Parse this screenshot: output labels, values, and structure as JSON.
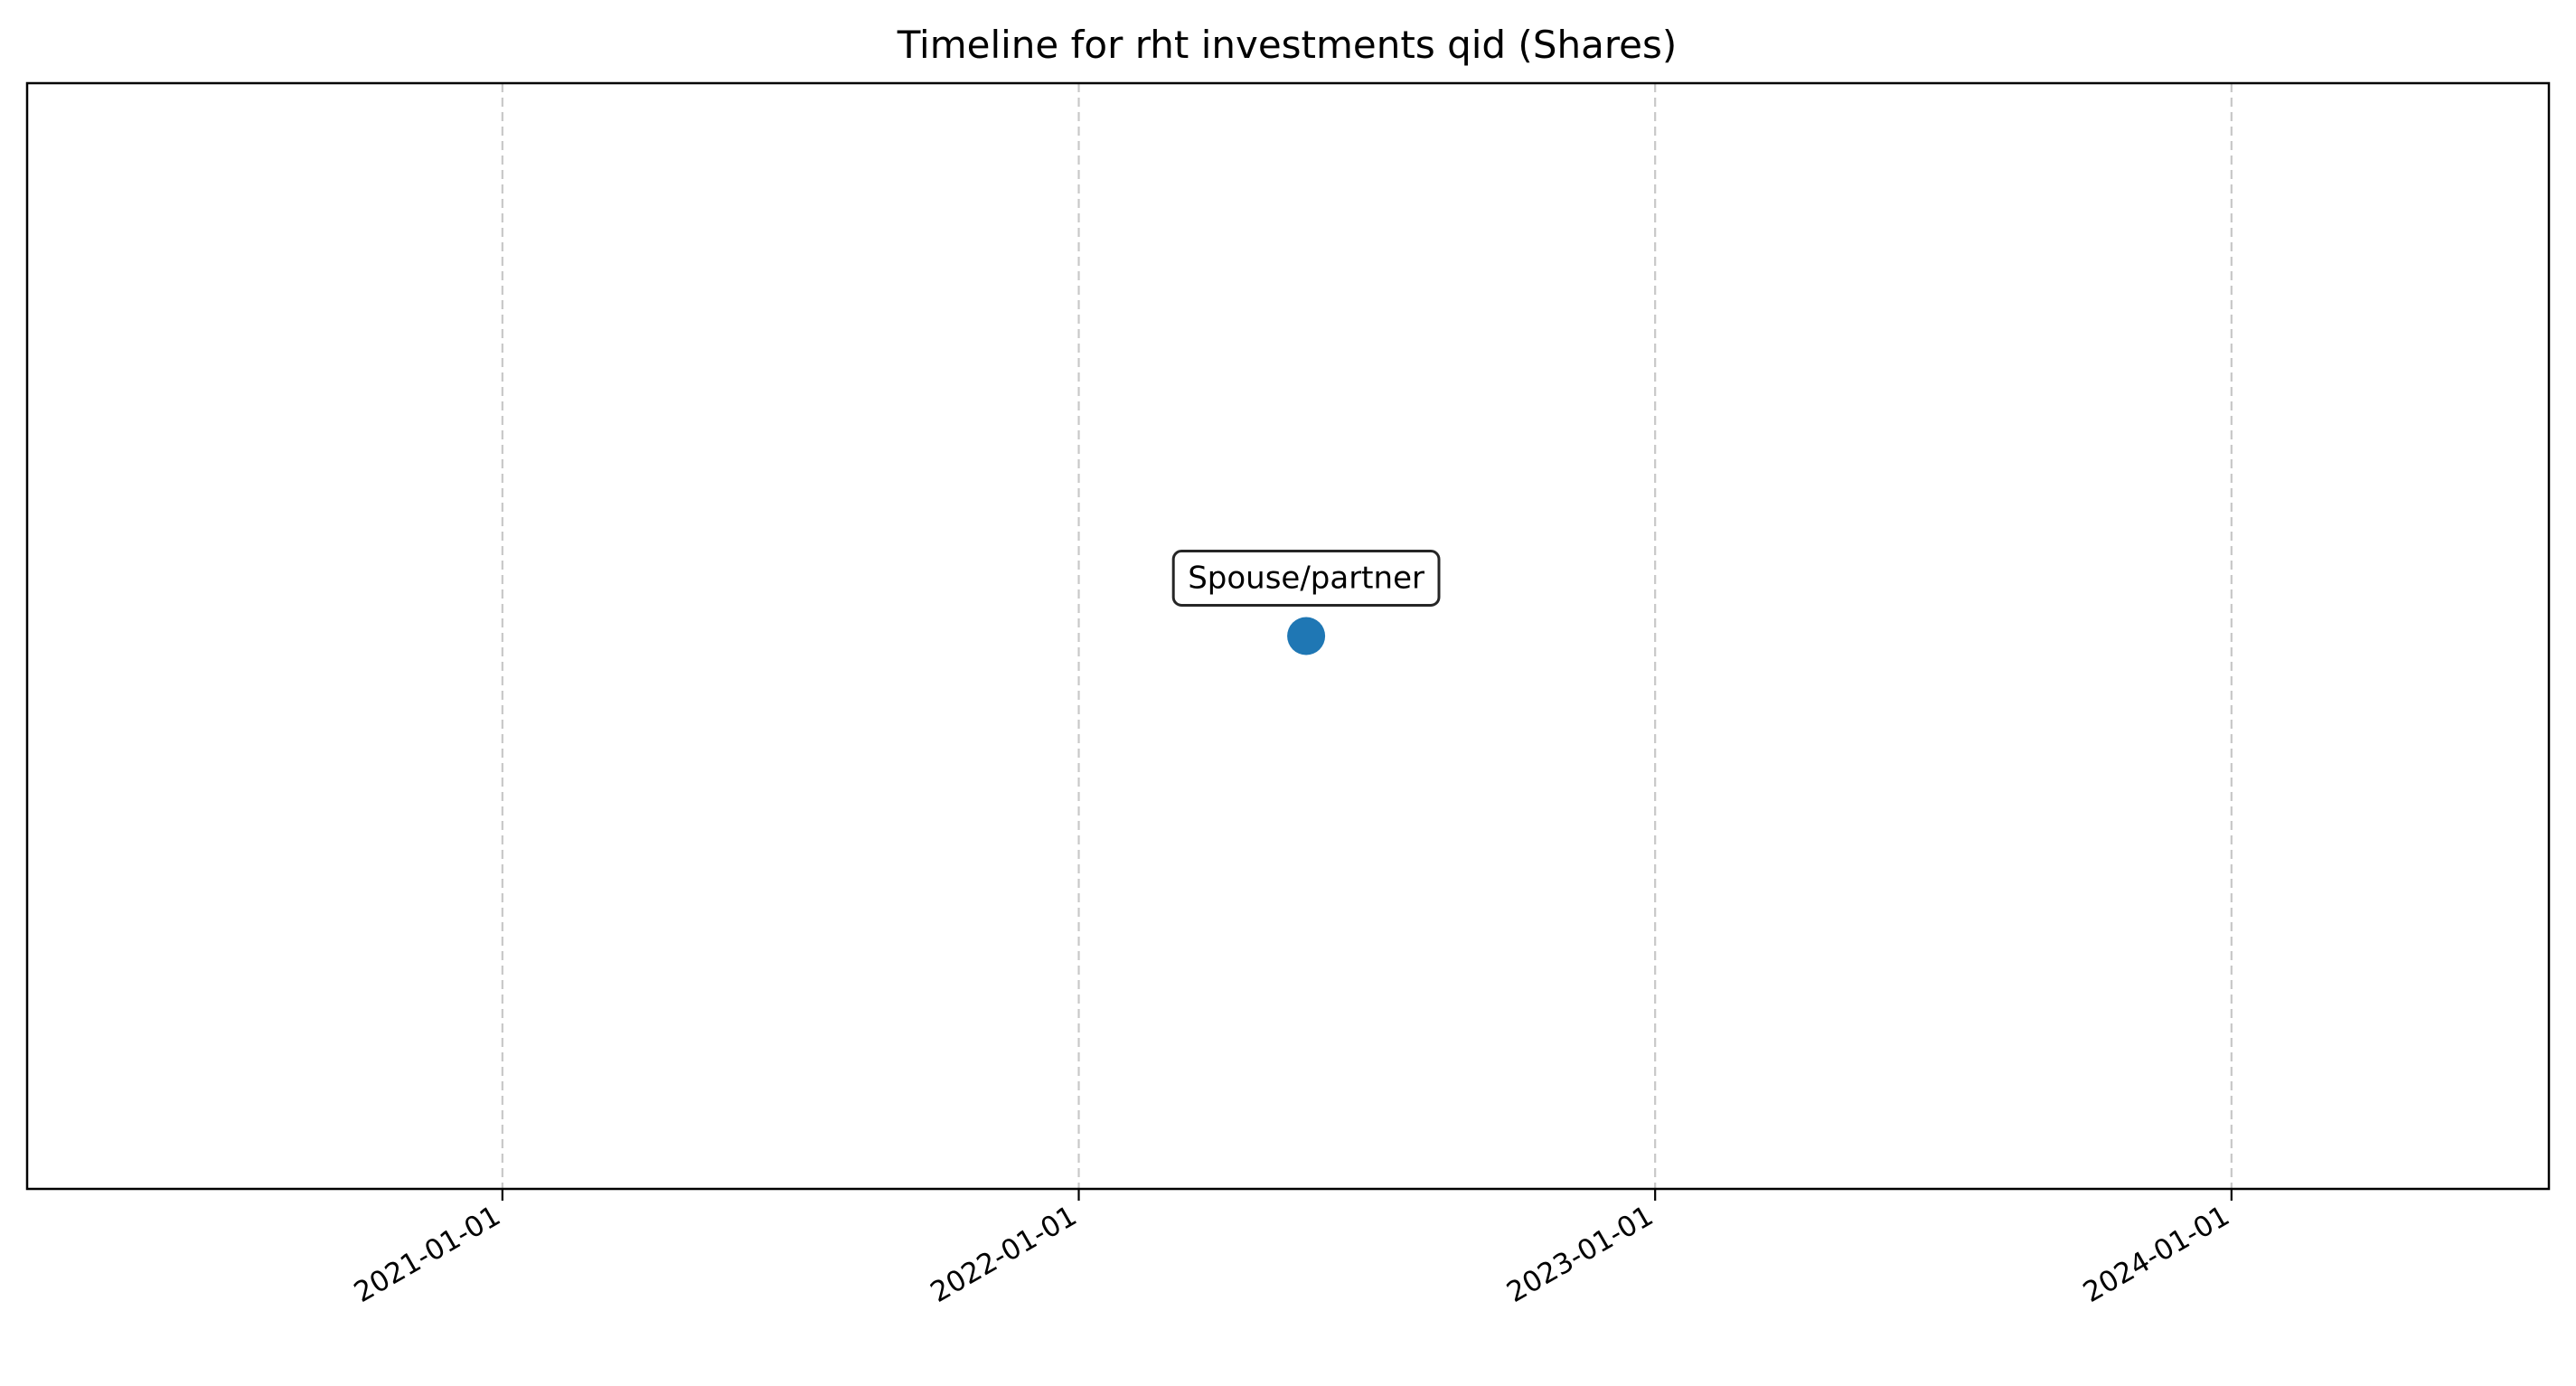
{
  "chart_data": {
    "type": "scatter",
    "title": "Timeline for rht investments qid (Shares)",
    "xlabel": "",
    "ylabel": "",
    "x_axis_type": "date",
    "xlim": [
      "2020-03-06",
      "2024-07-20"
    ],
    "ylim": [
      -1,
      1
    ],
    "x_ticks": [
      "2021-01-01",
      "2022-01-01",
      "2023-01-01",
      "2024-01-01"
    ],
    "y_ticks": [],
    "grid": {
      "x": true,
      "y": false,
      "style": "dashed"
    },
    "legend": "none",
    "points": [
      {
        "date": "2022-05-25",
        "y": 0,
        "label": "Spouse/partner"
      }
    ],
    "colors": {
      "marker": "#1f77b4",
      "grid": "#c8c8c8",
      "axes": "#000000",
      "annotation_border": "#262626"
    }
  }
}
